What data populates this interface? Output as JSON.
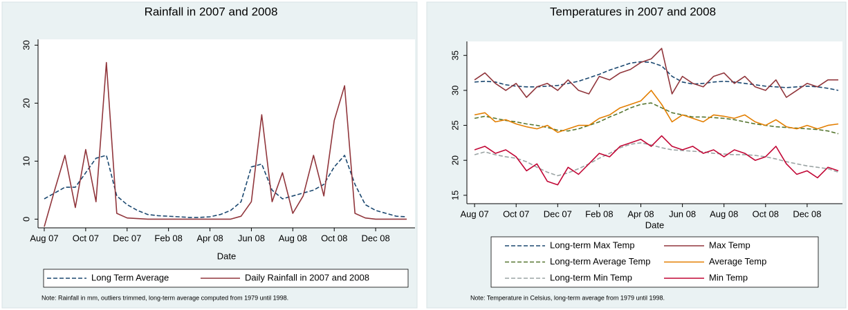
{
  "chart_data": [
    {
      "type": "line",
      "title": "Rainfall in 2007 and 2008",
      "xlabel": "Date",
      "note": "Note: Rainfall in mm, outliers trimmed, long-term average computed from 1979 until 1998.",
      "x": [
        0,
        0.5,
        1,
        1.5,
        2,
        2.5,
        3,
        3.5,
        4,
        4.5,
        5,
        5.5,
        6,
        6.5,
        7,
        7.5,
        8,
        8.5,
        9,
        9.5,
        10,
        10.5,
        11,
        11.5,
        12,
        12.5,
        13,
        13.5,
        14,
        14.5,
        15,
        15.5,
        16,
        16.5,
        17,
        17.5
      ],
      "xlim": [
        -0.3,
        17.9
      ],
      "xticks": [
        {
          "value": 0,
          "label": "Aug 07"
        },
        {
          "value": 2,
          "label": "Oct 07"
        },
        {
          "value": 4,
          "label": "Dec 07"
        },
        {
          "value": 6,
          "label": "Feb 08"
        },
        {
          "value": 8,
          "label": "Apr 08"
        },
        {
          "value": 10,
          "label": "Jun 08"
        },
        {
          "value": 12,
          "label": "Aug 08"
        },
        {
          "value": 14,
          "label": "Oct 08"
        },
        {
          "value": 16,
          "label": "Dec 08"
        }
      ],
      "ylim": [
        -1.5,
        31
      ],
      "yticks": [
        0,
        10,
        20,
        30
      ],
      "series": [
        {
          "name": "Long Term Average",
          "color": "#1a476f",
          "dashed": true,
          "values": [
            3.5,
            4.5,
            5.5,
            5.5,
            8,
            10.5,
            11,
            4,
            2.5,
            1.5,
            0.8,
            0.6,
            0.5,
            0.4,
            0.3,
            0.3,
            0.4,
            0.8,
            1.5,
            3,
            9,
            9.5,
            5,
            3.5,
            4,
            4.5,
            5,
            6,
            9,
            11,
            6,
            2.5,
            1.5,
            1,
            0.5,
            0.4
          ]
        },
        {
          "name": "Daily Rainfall in 2007 and 2008",
          "color": "#90353b",
          "dashed": false,
          "values": [
            -1.3,
            5,
            11,
            2,
            12,
            3,
            27,
            1,
            0.2,
            0.1,
            0,
            0,
            0,
            0,
            0,
            0,
            0,
            0,
            0,
            0.5,
            3,
            18,
            3,
            8,
            1,
            4,
            11,
            4,
            17,
            23,
            1,
            0.2,
            0,
            0,
            0,
            0
          ]
        }
      ]
    },
    {
      "type": "line",
      "title": "Temperatures in 2007 and 2008",
      "xlabel": "Date",
      "note": "Note: Temperature in Celsius, long-term average from 1979 until 1998.",
      "x": [
        0,
        0.5,
        1,
        1.5,
        2,
        2.5,
        3,
        3.5,
        4,
        4.5,
        5,
        5.5,
        6,
        6.5,
        7,
        7.5,
        8,
        8.5,
        9,
        9.5,
        10,
        10.5,
        11,
        11.5,
        12,
        12.5,
        13,
        13.5,
        14,
        14.5,
        15,
        15.5,
        16,
        16.5,
        17,
        17.5
      ],
      "xlim": [
        -0.37,
        17.7
      ],
      "xticks": [
        {
          "value": 0,
          "label": "Aug 07"
        },
        {
          "value": 2,
          "label": "Oct 07"
        },
        {
          "value": 4,
          "label": "Dec 07"
        },
        {
          "value": 6,
          "label": "Feb 08"
        },
        {
          "value": 8,
          "label": "Apr 08"
        },
        {
          "value": 10,
          "label": "Jun 08"
        },
        {
          "value": 12,
          "label": "Aug 08"
        },
        {
          "value": 14,
          "label": "Oct 08"
        },
        {
          "value": 16,
          "label": "Dec 08"
        }
      ],
      "ylim": [
        13.8,
        37
      ],
      "yticks": [
        15,
        20,
        25,
        30,
        35
      ],
      "series": [
        {
          "name": "Long-term Max Temp",
          "color": "#1a476f",
          "dashed": true,
          "values": [
            31.2,
            31.3,
            31.2,
            30.8,
            30.6,
            30.5,
            30.5,
            30.6,
            30.7,
            31,
            31.3,
            31.8,
            32.3,
            32.9,
            33.4,
            33.9,
            34.1,
            34,
            33.5,
            32,
            31.2,
            30.9,
            31,
            31.2,
            31.3,
            31.2,
            31,
            30.8,
            30.6,
            30.5,
            30.4,
            30.5,
            30.6,
            30.5,
            30.3,
            30
          ]
        },
        {
          "name": "Max Temp",
          "color": "#90353b",
          "dashed": false,
          "values": [
            31.5,
            32.5,
            31,
            30,
            31,
            29,
            30.5,
            31,
            30,
            31.5,
            30,
            29.5,
            32,
            31.5,
            32.5,
            33,
            34,
            34.5,
            36,
            29.5,
            32,
            31,
            30.5,
            32,
            32.5,
            31,
            32,
            30.5,
            30,
            31.5,
            29,
            30,
            31,
            30.5,
            31.5,
            31.5
          ]
        },
        {
          "name": "Long-term Average Temp",
          "color": "#55752f",
          "dashed": true,
          "values": [
            26,
            26.3,
            26,
            25.7,
            25.5,
            25.2,
            25,
            24.7,
            24.3,
            24.2,
            24.5,
            25,
            25.5,
            26.2,
            26.8,
            27.5,
            28,
            28.2,
            27.5,
            26.8,
            26.5,
            26.2,
            26.2,
            26.1,
            26,
            25.8,
            25.5,
            25.2,
            25,
            24.8,
            24.7,
            24.6,
            24.5,
            24.4,
            24.2,
            23.8
          ]
        },
        {
          "name": "Average Temp",
          "color": "#e37e00",
          "dashed": false,
          "values": [
            26.5,
            26.8,
            25.5,
            25.8,
            25.2,
            24.8,
            24.5,
            25,
            24,
            24.5,
            25,
            25,
            26,
            26.5,
            27.5,
            28,
            28.5,
            30,
            28,
            25.5,
            26.5,
            26,
            25.5,
            26.5,
            26.3,
            26,
            26.5,
            25.5,
            25,
            25.8,
            24.8,
            24.5,
            25,
            24.5,
            25,
            25.2
          ]
        },
        {
          "name": "Long-term Min Temp",
          "color": "#9aa3a3",
          "dashed": true,
          "values": [
            20.8,
            21.2,
            20.8,
            20.5,
            20.3,
            19.8,
            19,
            18.3,
            17.8,
            18.2,
            18.8,
            19.5,
            20.3,
            21,
            21.8,
            22.3,
            22.5,
            22.2,
            21.8,
            21.5,
            21.4,
            21.3,
            21.2,
            21,
            20.9,
            20.8,
            20.8,
            20.7,
            20.5,
            20.2,
            19.8,
            19.5,
            19.2,
            19,
            18.8,
            18.3
          ]
        },
        {
          "name": "Min Temp",
          "color": "#c10534",
          "dashed": false,
          "values": [
            21.5,
            22,
            21,
            21.5,
            20.5,
            18.5,
            19.5,
            17,
            16.5,
            19,
            18,
            19.5,
            21,
            20.5,
            22,
            22.5,
            23,
            22,
            23.5,
            22,
            21.5,
            22,
            21,
            21.5,
            20.5,
            21.5,
            21,
            20,
            20.5,
            22,
            19.5,
            18,
            18.5,
            17.5,
            19,
            18.5
          ]
        }
      ]
    }
  ]
}
